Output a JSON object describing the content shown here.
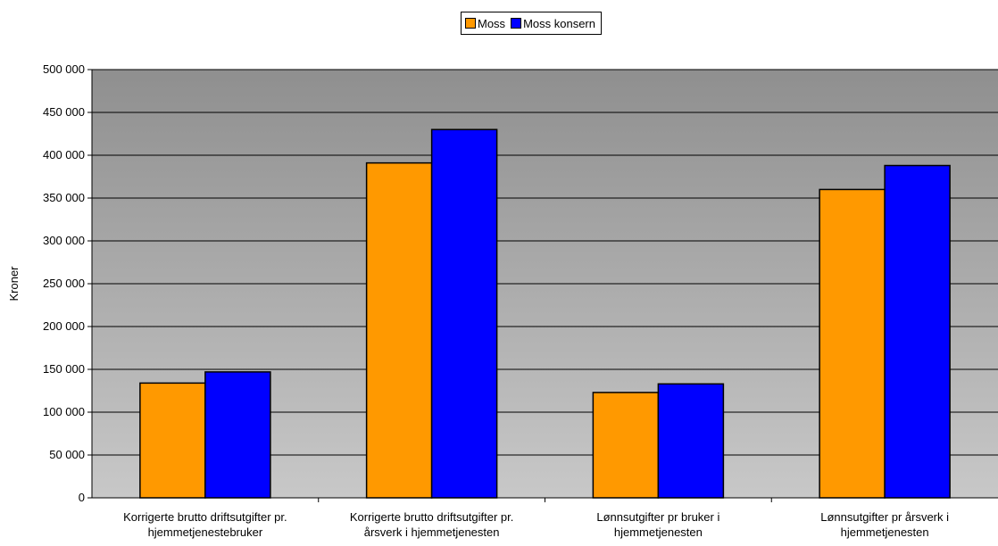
{
  "chart_data": {
    "type": "bar",
    "title": "",
    "xlabel": "",
    "ylabel": "Kroner",
    "ylim": [
      0,
      500000
    ],
    "ytick_step": 50000,
    "ytick_labels": [
      "0",
      "50 000",
      "100 000",
      "150 000",
      "200 000",
      "250 000",
      "300 000",
      "350 000",
      "400 000",
      "450 000",
      "500 000"
    ],
    "categories": [
      [
        "Korrigerte brutto driftsutgifter pr.",
        "hjemmetjenestebruker"
      ],
      [
        "Korrigerte brutto driftsutgifter pr.",
        "årsverk i hjemmetjenesten"
      ],
      [
        "Lønnsutgifter pr bruker i",
        "hjemmetjenesten"
      ],
      [
        "Lønnsutgifter pr årsverk i",
        "hjemmetjenesten"
      ]
    ],
    "series": [
      {
        "name": "Moss",
        "color": "#FF9900",
        "values": [
          134000,
          391000,
          123000,
          360000
        ]
      },
      {
        "name": "Moss konsern",
        "color": "#0000FF",
        "values": [
          147000,
          430000,
          133000,
          388000
        ]
      }
    ],
    "grid": true,
    "legend_position": "top-center",
    "plot_background": "gradient-gray"
  }
}
